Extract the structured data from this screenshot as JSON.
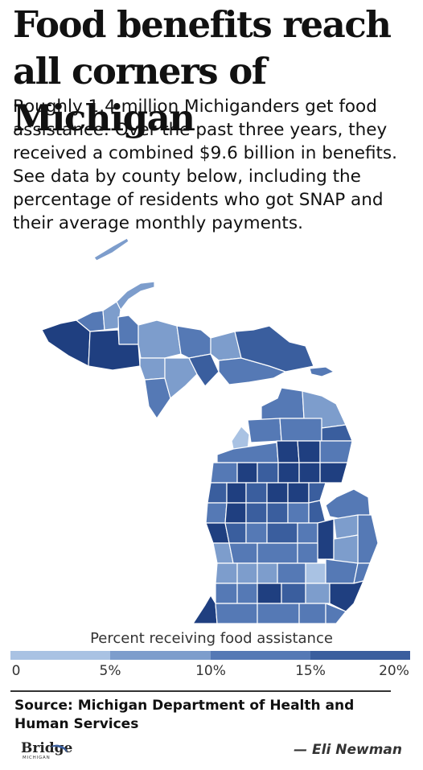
{
  "headline": "Food benefits reach all corners of Michigan",
  "dek": "Roughly 1.4 million Michiganders get food assistance. Over the past three years, they received a combined $9.6 billion in benefits. See data by county below, including the percentage of residents who got SNAP and their average monthly payments.",
  "legend": {
    "title": "Percent receiving food assistance",
    "ticks": [
      "0",
      "5%",
      "10%",
      "15%",
      "20%"
    ],
    "colors": [
      "#a9c2e3",
      "#7d9dcc",
      "#5579b5",
      "#3a5e9e",
      "#1f3f80"
    ]
  },
  "source": "Source: Michigan Department of Health and Human Services",
  "logo": {
    "name": "Bridge",
    "tagline": "MICHIGAN"
  },
  "byline": "— Eli Newman",
  "map": {
    "label": "Michigan counties shaded by percent receiving food assistance",
    "colors": {
      "pale": "#a9c2e3",
      "light": "#7d9dcc",
      "mid": "#5579b5",
      "dark": "#3a5e9e",
      "darkest": "#1f3f80"
    }
  }
}
